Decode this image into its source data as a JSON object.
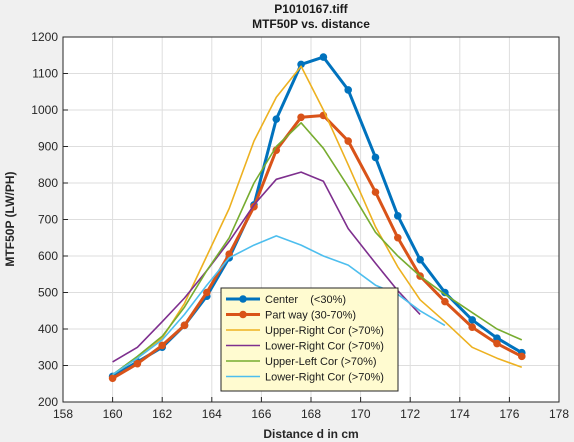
{
  "chart_data": {
    "type": "line",
    "title": "P1010167.tiff",
    "subtitle": "MTF50P vs. distance",
    "xlabel": "Distance d in cm",
    "ylabel": "MTF50P  (LW/PH)",
    "xlim": [
      158,
      178
    ],
    "ylim": [
      200,
      1200
    ],
    "xticks": [
      158,
      160,
      162,
      164,
      166,
      168,
      170,
      172,
      174,
      176,
      178
    ],
    "yticks": [
      200,
      300,
      400,
      500,
      600,
      700,
      800,
      900,
      1000,
      1100,
      1200
    ],
    "grid": true,
    "legend_position": "bottom-center",
    "series": [
      {
        "name": "Center    (<30%)",
        "color": "#0072BD",
        "markers": true,
        "x": [
          160,
          161,
          162,
          162.9,
          163.8,
          164.7,
          165.7,
          166.6,
          167.6,
          168.5,
          169.5,
          170.6,
          171.5,
          172.4,
          173.4,
          174.5,
          175.5,
          176.5
        ],
        "y": [
          270,
          310,
          350,
          410,
          490,
          595,
          740,
          975,
          1125,
          1145,
          1055,
          870,
          710,
          590,
          500,
          425,
          375,
          335
        ]
      },
      {
        "name": "Part way (30-70%)",
        "color": "#D95319",
        "markers": true,
        "x": [
          160,
          161,
          162,
          162.9,
          163.8,
          164.7,
          165.7,
          166.6,
          167.6,
          168.5,
          169.5,
          170.6,
          171.5,
          172.4,
          173.4,
          174.5,
          175.5,
          176.5
        ],
        "y": [
          265,
          305,
          355,
          410,
          500,
          605,
          735,
          890,
          980,
          985,
          915,
          775,
          650,
          545,
          475,
          405,
          360,
          325
        ]
      },
      {
        "name": "Upper-Right Cor (>70%)",
        "color": "#EDB120",
        "markers": false,
        "x": [
          160,
          161,
          162,
          162.9,
          163.8,
          164.7,
          165.7,
          166.6,
          167.6,
          168.5,
          169.5,
          170.6,
          171.5,
          172.4,
          173.4,
          174.5,
          175.5,
          176.5
        ],
        "y": [
          275,
          320,
          375,
          470,
          600,
          730,
          915,
          1035,
          1120,
          1000,
          850,
          680,
          570,
          480,
          420,
          350,
          320,
          295
        ]
      },
      {
        "name": "Lower-Right Cor (>70%)",
        "color": "#7E2F8E",
        "markers": false,
        "x": [
          160,
          161,
          162,
          162.9,
          163.8,
          164.7,
          165.7,
          166.6,
          167.6,
          168.5,
          169.5,
          170.6,
          171.5,
          172.4
        ],
        "y": [
          310,
          350,
          420,
          485,
          560,
          640,
          740,
          810,
          830,
          805,
          675,
          580,
          505,
          440
        ]
      },
      {
        "name": "Upper-Left Cor (>70%)",
        "color": "#77AC30",
        "markers": false,
        "x": [
          160,
          161,
          162,
          162.9,
          163.8,
          164.7,
          165.7,
          166.6,
          167.6,
          168.5,
          169.5,
          170.6,
          171.5,
          172.4,
          173.4,
          174.5,
          175.5,
          176.5
        ],
        "y": [
          275,
          325,
          380,
          460,
          560,
          650,
          800,
          900,
          965,
          895,
          790,
          665,
          600,
          545,
          495,
          445,
          400,
          370
        ]
      },
      {
        "name": "Lower-Right Cor (>70%)",
        "color": "#4DBEEE",
        "markers": false,
        "x": [
          160,
          161,
          162,
          162.9,
          163.8,
          164.7,
          165.7,
          166.6,
          167.6,
          168.5,
          169.5,
          170.6,
          171.5,
          172.4,
          173.4
        ],
        "y": [
          275,
          320,
          370,
          440,
          520,
          595,
          630,
          655,
          630,
          600,
          575,
          520,
          495,
          450,
          410
        ]
      }
    ]
  }
}
